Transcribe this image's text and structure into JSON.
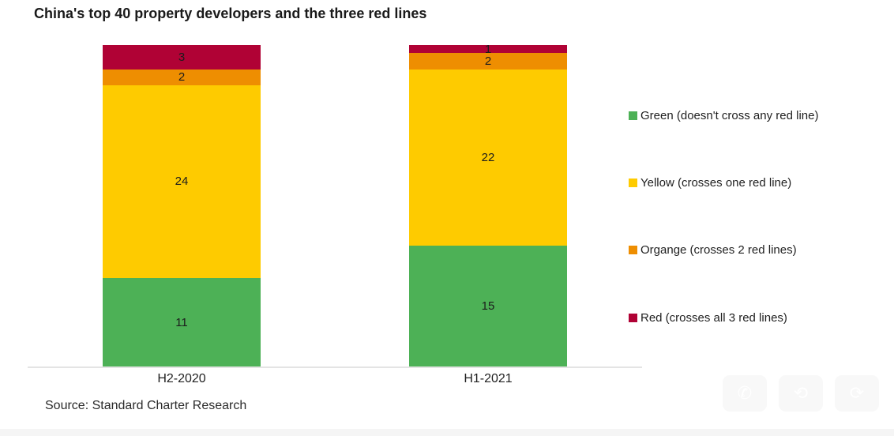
{
  "title": "China's top 40 property developers and the three red lines",
  "source": "Source: Standard Charter Research",
  "colors": {
    "green": "#4db156",
    "yellow": "#fecb00",
    "orange": "#ee8e01",
    "red": "#b00235",
    "axis_line": "#e4e4e4"
  },
  "legend": [
    {
      "label": "Green (doesn't cross any red line)",
      "color_key": "green"
    },
    {
      "label": "Yellow (crosses one red line)",
      "color_key": "yellow"
    },
    {
      "label": "Organge (crosses 2 red lines)",
      "color_key": "orange"
    },
    {
      "label": "Red (crosses all 3 red lines)",
      "color_key": "red"
    }
  ],
  "watermark_icons": [
    {
      "name": "phone-icon",
      "glyph": "✆"
    },
    {
      "name": "refresh-icon",
      "glyph": "⟲"
    },
    {
      "name": "share-icon",
      "glyph": "⟳"
    }
  ],
  "chart_data": {
    "type": "bar",
    "stacked": true,
    "categories": [
      "H2-2020",
      "H1-2021"
    ],
    "series": [
      {
        "name": "Green (doesn't cross any red line)",
        "color_key": "green",
        "values": [
          11,
          15
        ]
      },
      {
        "name": "Yellow (crosses one red line)",
        "color_key": "yellow",
        "values": [
          24,
          22
        ]
      },
      {
        "name": "Organge (crosses 2 red lines)",
        "color_key": "orange",
        "values": [
          2,
          2
        ]
      },
      {
        "name": "Red (crosses all 3 red lines)",
        "color_key": "red",
        "values": [
          3,
          1
        ]
      }
    ],
    "total_per_bar": 40,
    "ylim": [
      0,
      40
    ],
    "grid": false,
    "legend_position": "right",
    "data_labels": true
  }
}
